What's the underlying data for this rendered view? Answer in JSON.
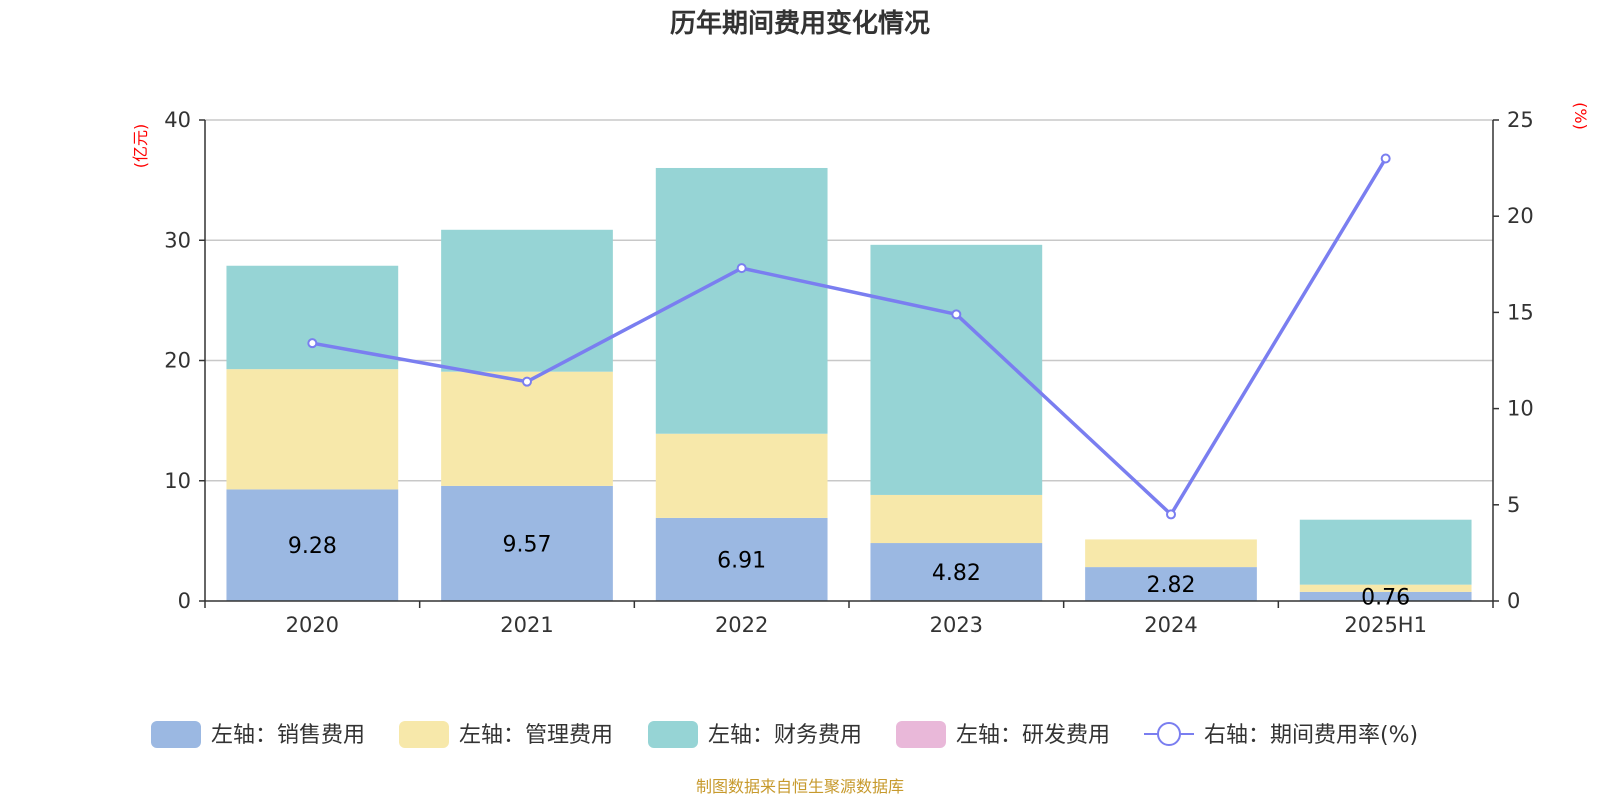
{
  "chart_data": {
    "type": "bar",
    "title": "历年期间费用变化情况",
    "categories": [
      "2020",
      "2021",
      "2022",
      "2023",
      "2024",
      "2025H1"
    ],
    "left_axis": {
      "unit": "(亿元)",
      "ylim": [
        0,
        40
      ],
      "ticks": [
        "0",
        "10",
        "20",
        "30",
        "40"
      ]
    },
    "right_axis": {
      "unit": "(%)",
      "ylim": [
        0,
        25
      ],
      "ticks": [
        "0",
        "5",
        "10",
        "15",
        "20",
        "25"
      ]
    },
    "series": [
      {
        "name": "左轴：销售费用",
        "type": "bar",
        "axis": "left",
        "color": "#9bb8e2",
        "values": [
          9.28,
          9.57,
          6.91,
          4.82,
          2.82,
          0.76
        ],
        "labels": [
          "9.28",
          "9.57",
          "6.91",
          "4.82",
          "2.82",
          "0.76"
        ]
      },
      {
        "name": "左轴：管理费用",
        "type": "bar",
        "axis": "left",
        "color": "#f7e8aa",
        "values": [
          10.0,
          9.5,
          7.0,
          4.0,
          2.3,
          0.6
        ]
      },
      {
        "name": "左轴：财务费用",
        "type": "bar",
        "axis": "left",
        "color": "#96d4d5",
        "values": [
          8.6,
          11.8,
          22.1,
          20.8,
          0,
          5.4
        ]
      },
      {
        "name": "左轴：研发费用",
        "type": "bar",
        "axis": "left",
        "color": "#e9b8d9",
        "values": [
          0,
          0,
          0,
          0,
          0,
          0
        ]
      },
      {
        "name": "右轴：期间费用率(%)",
        "type": "line",
        "axis": "right",
        "color": "#7a7ef0",
        "values": [
          13.4,
          11.4,
          17.3,
          14.9,
          4.5,
          23.0
        ]
      }
    ],
    "legend_position": "bottom",
    "grid": true
  },
  "footer": {
    "source": "制图数据来自恒生聚源数据库"
  }
}
